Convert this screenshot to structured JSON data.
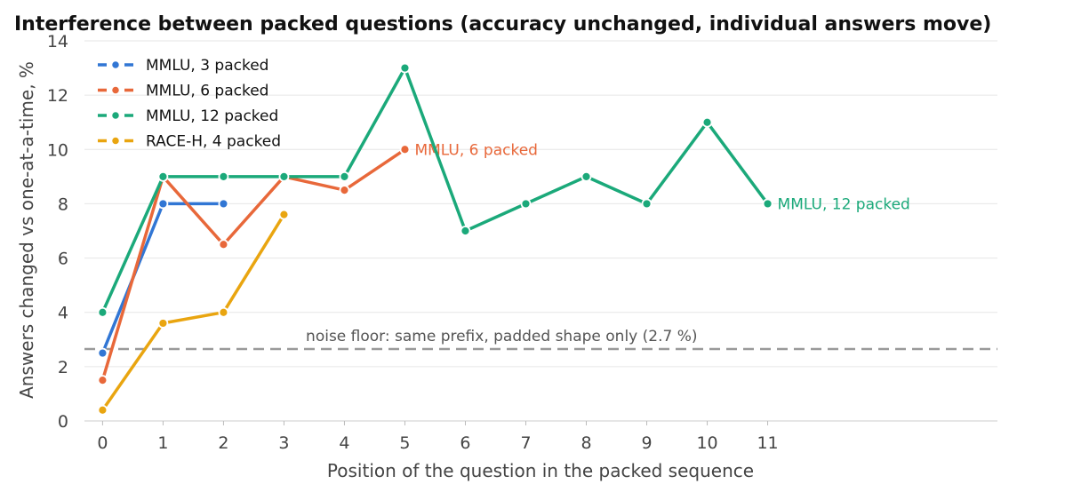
{
  "chart_data": {
    "type": "line",
    "title": "Interference between packed questions (accuracy unchanged, individual answers move)",
    "xlabel": "Position of the question in the packed sequence",
    "ylabel": "Answers changed vs one-at-a-time, %",
    "xticks": [
      0,
      1,
      2,
      3,
      4,
      5,
      6,
      7,
      8,
      9,
      10,
      11
    ],
    "yticks": [
      0,
      2,
      4,
      6,
      8,
      10,
      12,
      14
    ],
    "xlim": [
      -0.3,
      14.8
    ],
    "ylim": [
      0,
      14
    ],
    "grid": "horizontal",
    "legend_position": "top-left",
    "series": [
      {
        "name": "MMLU, 3 packed",
        "color": "#3176d4",
        "x": [
          0,
          1,
          2
        ],
        "y": [
          2.5,
          8,
          8
        ]
      },
      {
        "name": "MMLU, 6 packed",
        "color": "#e8683a",
        "x": [
          0,
          1,
          2,
          3,
          4,
          5
        ],
        "y": [
          1.5,
          9,
          6.5,
          9,
          8.5,
          10
        ],
        "end_label": "MMLU, 6 packed"
      },
      {
        "name": "MMLU, 12 packed",
        "color": "#1ba97a",
        "x": [
          0,
          1,
          2,
          3,
          4,
          5,
          6,
          7,
          8,
          9,
          10,
          11
        ],
        "y": [
          4,
          9,
          9,
          9,
          9,
          13,
          7,
          8,
          9,
          8,
          11,
          8
        ],
        "end_label": "MMLU, 12 packed"
      },
      {
        "name": "RACE-H, 4 packed",
        "color": "#e9a510",
        "x": [
          0,
          1,
          2,
          3
        ],
        "y": [
          0.4,
          3.6,
          4,
          7.6
        ]
      }
    ],
    "reference_line": {
      "y": 2.65,
      "label": "noise floor: same prefix, padded shape only (2.7 %)",
      "color": "#999999",
      "style": "dashed"
    }
  }
}
